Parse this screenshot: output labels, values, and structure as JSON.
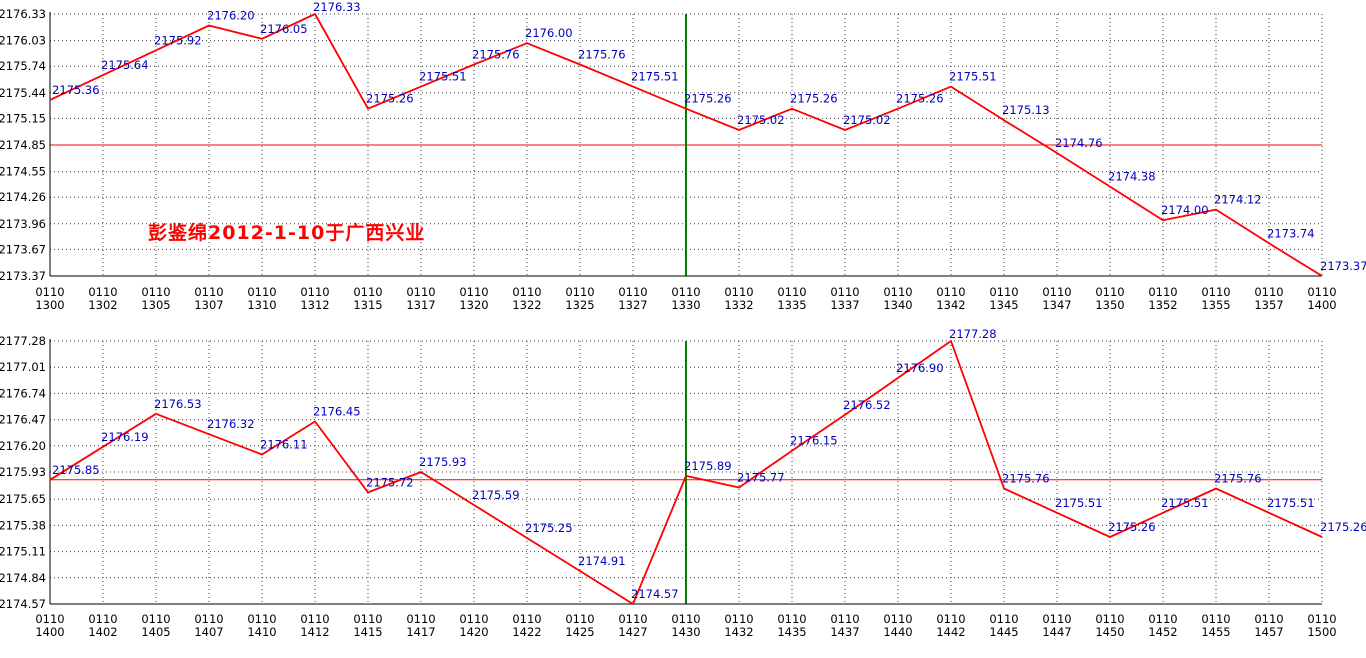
{
  "window": {
    "background": "#ffffff"
  },
  "colors": {
    "price_line": "#ff0000",
    "point_label": "#0000bb",
    "grid": "#3c3c3c",
    "axis": "#000000",
    "axis_text": "#000000",
    "divider_line": "#008000",
    "reference_line": "#ff0000",
    "annotation": "#ff0000"
  },
  "chart_data": [
    {
      "type": "line",
      "title": "",
      "series_color": "#ff0000",
      "x_date_row": "0110",
      "categories": [
        "1300",
        "1302",
        "1305",
        "1307",
        "1310",
        "1312",
        "1315",
        "1317",
        "1320",
        "1322",
        "1325",
        "1327",
        "1330",
        "1332",
        "1335",
        "1337",
        "1340",
        "1342",
        "1345",
        "1347",
        "1350",
        "1352",
        "1355",
        "1357",
        "1400"
      ],
      "values": [
        2175.36,
        2175.64,
        2175.92,
        2176.2,
        2176.05,
        2176.33,
        2175.26,
        2175.51,
        2175.76,
        2176.0,
        2175.76,
        2175.51,
        2175.26,
        2175.02,
        2175.26,
        2175.02,
        2175.26,
        2175.51,
        2175.13,
        2174.76,
        2174.38,
        2174.0,
        2174.12,
        2173.74,
        2173.37
      ],
      "y_ticks": [
        2176.33,
        2176.03,
        2175.74,
        2175.44,
        2175.15,
        2174.85,
        2174.55,
        2174.26,
        2173.96,
        2173.67,
        2173.37
      ],
      "ylim": [
        2173.37,
        2176.33
      ],
      "reference_value": 2174.85,
      "divider_at": "1330",
      "grid": true,
      "legend": "none",
      "point_labels": true,
      "annotation": "彭鉴绵2012-1-10于广西兴业"
    },
    {
      "type": "line",
      "title": "",
      "series_color": "#ff0000",
      "x_date_row": "0110",
      "categories": [
        "1400",
        "1402",
        "1405",
        "1407",
        "1410",
        "1412",
        "1415",
        "1417",
        "1420",
        "1422",
        "1425",
        "1427",
        "1430",
        "1432",
        "1435",
        "1437",
        "1440",
        "1442",
        "1445",
        "1447",
        "1450",
        "1452",
        "1455",
        "1457",
        "1500"
      ],
      "values": [
        2175.85,
        2176.19,
        2176.53,
        2176.32,
        2176.11,
        2176.45,
        2175.72,
        2175.93,
        2175.59,
        2175.25,
        2174.91,
        2174.57,
        2175.89,
        2175.77,
        2176.15,
        2176.52,
        2176.9,
        2177.28,
        2175.76,
        2175.51,
        2175.26,
        2175.51,
        2175.76,
        2175.51,
        2175.26
      ],
      "y_ticks": [
        2177.28,
        2177.01,
        2176.74,
        2176.47,
        2176.2,
        2175.93,
        2175.65,
        2175.38,
        2175.11,
        2174.84,
        2174.57
      ],
      "ylim": [
        2174.57,
        2177.28
      ],
      "reference_value": 2175.85,
      "divider_at": "1430",
      "grid": true,
      "legend": "none",
      "point_labels": true,
      "annotation": ""
    }
  ]
}
